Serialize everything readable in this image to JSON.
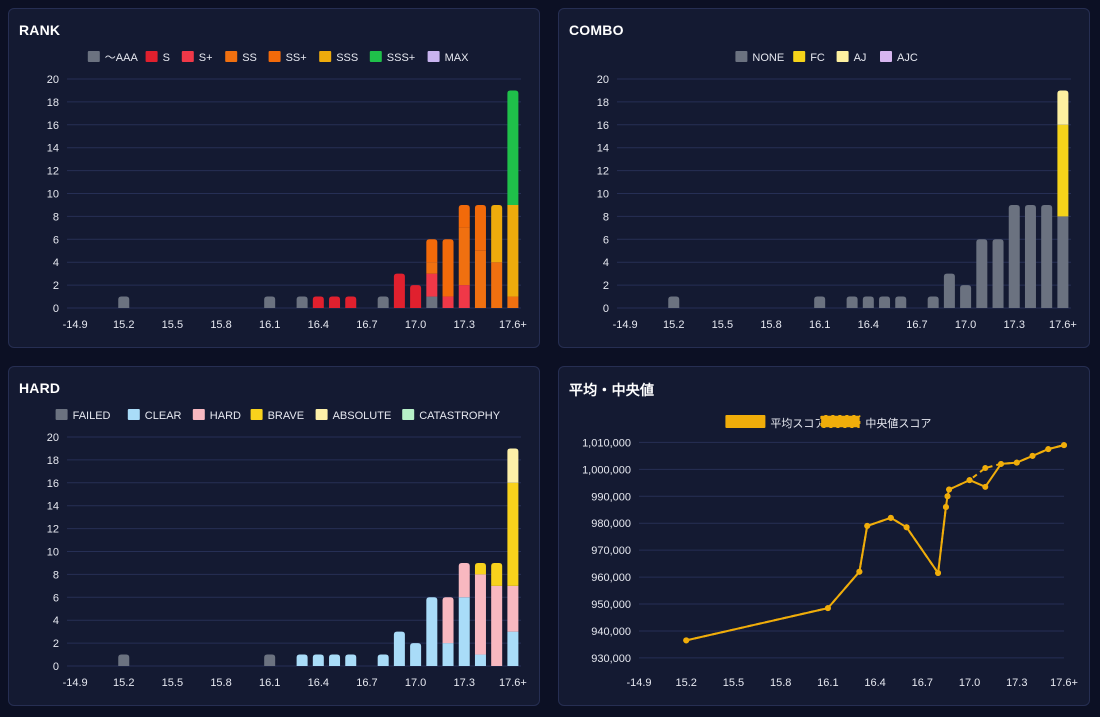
{
  "palette": {
    "grid": "#262f55",
    "tick": "#e6e8f0",
    "panel_bg": "#141a32"
  },
  "panels": {
    "rank": {
      "title": "RANK"
    },
    "combo": {
      "title": "COMBO"
    },
    "hard": {
      "title": "HARD"
    },
    "avg": {
      "title": "平均・中央値"
    }
  },
  "chart_data": [
    {
      "id": "rank",
      "type": "bar",
      "stacked": true,
      "title": "RANK",
      "legend_position": "top-center",
      "categories": [
        "-14.9",
        "15.0",
        "15.1",
        "15.2",
        "15.3",
        "15.4",
        "15.5",
        "15.6",
        "15.7",
        "15.8",
        "15.9",
        "16.0",
        "16.1",
        "16.2",
        "16.3",
        "16.4",
        "16.5",
        "16.6",
        "16.7",
        "16.8",
        "16.9",
        "17.0",
        "17.1",
        "17.2",
        "17.3",
        "17.4",
        "17.5",
        "17.6+"
      ],
      "x_tick_labels": [
        "-14.9",
        "15.2",
        "15.5",
        "15.8",
        "16.1",
        "16.4",
        "16.7",
        "17.0",
        "17.3",
        "17.6+"
      ],
      "ylim": [
        0,
        20
      ],
      "y_ticks": [
        0,
        2,
        4,
        6,
        8,
        10,
        12,
        14,
        16,
        18,
        20
      ],
      "series": [
        {
          "name": "〜AAA",
          "color": "#6b7280",
          "values": [
            0,
            0,
            0,
            1,
            0,
            0,
            0,
            0,
            0,
            0,
            0,
            0,
            1,
            0,
            1,
            0,
            0,
            0,
            0,
            1,
            0,
            0,
            1,
            0,
            0,
            0,
            0,
            0
          ]
        },
        {
          "name": "S",
          "color": "#e0202e",
          "values": [
            0,
            0,
            0,
            0,
            0,
            0,
            0,
            0,
            0,
            0,
            0,
            0,
            0,
            0,
            0,
            1,
            1,
            1,
            0,
            0,
            3,
            2,
            0,
            0,
            0,
            0,
            0,
            0
          ]
        },
        {
          "name": "S+",
          "color": "#f03848",
          "values": [
            0,
            0,
            0,
            0,
            0,
            0,
            0,
            0,
            0,
            0,
            0,
            0,
            0,
            0,
            0,
            0,
            0,
            0,
            0,
            0,
            0,
            0,
            2,
            1,
            2,
            0,
            0,
            0
          ]
        },
        {
          "name": "SS",
          "color": "#f07010",
          "values": [
            0,
            0,
            0,
            0,
            0,
            0,
            0,
            0,
            0,
            0,
            0,
            0,
            0,
            0,
            0,
            0,
            0,
            0,
            0,
            0,
            0,
            0,
            1,
            0,
            5,
            5,
            4,
            1
          ]
        },
        {
          "name": "SS+",
          "color": "#f26a0a",
          "values": [
            0,
            0,
            0,
            0,
            0,
            0,
            0,
            0,
            0,
            0,
            0,
            0,
            0,
            0,
            0,
            0,
            0,
            0,
            0,
            0,
            0,
            0,
            2,
            5,
            2,
            4,
            0,
            0
          ]
        },
        {
          "name": "SSS",
          "color": "#eeab0c",
          "values": [
            0,
            0,
            0,
            0,
            0,
            0,
            0,
            0,
            0,
            0,
            0,
            0,
            0,
            0,
            0,
            0,
            0,
            0,
            0,
            0,
            0,
            0,
            0,
            0,
            0,
            0,
            5,
            8
          ]
        },
        {
          "name": "SSS+",
          "color": "#1fc04a",
          "values": [
            0,
            0,
            0,
            0,
            0,
            0,
            0,
            0,
            0,
            0,
            0,
            0,
            0,
            0,
            0,
            0,
            0,
            0,
            0,
            0,
            0,
            0,
            0,
            0,
            0,
            0,
            0,
            10
          ]
        },
        {
          "name": "MAX",
          "color": "#c9b4f0",
          "values": [
            0,
            0,
            0,
            0,
            0,
            0,
            0,
            0,
            0,
            0,
            0,
            0,
            0,
            0,
            0,
            0,
            0,
            0,
            0,
            0,
            0,
            0,
            0,
            0,
            0,
            0,
            0,
            0
          ]
        }
      ]
    },
    {
      "id": "combo",
      "type": "bar",
      "stacked": true,
      "title": "COMBO",
      "legend_position": "top-center",
      "categories": [
        "-14.9",
        "15.0",
        "15.1",
        "15.2",
        "15.3",
        "15.4",
        "15.5",
        "15.6",
        "15.7",
        "15.8",
        "15.9",
        "16.0",
        "16.1",
        "16.2",
        "16.3",
        "16.4",
        "16.5",
        "16.6",
        "16.7",
        "16.8",
        "16.9",
        "17.0",
        "17.1",
        "17.2",
        "17.3",
        "17.4",
        "17.5",
        "17.6+"
      ],
      "x_tick_labels": [
        "-14.9",
        "15.2",
        "15.5",
        "15.8",
        "16.1",
        "16.4",
        "16.7",
        "17.0",
        "17.3",
        "17.6+"
      ],
      "ylim": [
        0,
        20
      ],
      "y_ticks": [
        0,
        2,
        4,
        6,
        8,
        10,
        12,
        14,
        16,
        18,
        20
      ],
      "series": [
        {
          "name": "NONE",
          "color": "#6b7280",
          "values": [
            0,
            0,
            0,
            1,
            0,
            0,
            0,
            0,
            0,
            0,
            0,
            0,
            1,
            0,
            1,
            1,
            1,
            1,
            0,
            1,
            3,
            2,
            6,
            6,
            9,
            9,
            9,
            8
          ]
        },
        {
          "name": "FC",
          "color": "#f5d31a",
          "values": [
            0,
            0,
            0,
            0,
            0,
            0,
            0,
            0,
            0,
            0,
            0,
            0,
            0,
            0,
            0,
            0,
            0,
            0,
            0,
            0,
            0,
            0,
            0,
            0,
            0,
            0,
            0,
            8
          ]
        },
        {
          "name": "AJ",
          "color": "#fdf0a0",
          "values": [
            0,
            0,
            0,
            0,
            0,
            0,
            0,
            0,
            0,
            0,
            0,
            0,
            0,
            0,
            0,
            0,
            0,
            0,
            0,
            0,
            0,
            0,
            0,
            0,
            0,
            0,
            0,
            3
          ]
        },
        {
          "name": "AJC",
          "color": "#d7b6f0",
          "values": [
            0,
            0,
            0,
            0,
            0,
            0,
            0,
            0,
            0,
            0,
            0,
            0,
            0,
            0,
            0,
            0,
            0,
            0,
            0,
            0,
            0,
            0,
            0,
            0,
            0,
            0,
            0,
            0
          ]
        }
      ]
    },
    {
      "id": "hard",
      "type": "bar",
      "stacked": true,
      "title": "HARD",
      "legend_position": "top-center",
      "categories": [
        "-14.9",
        "15.0",
        "15.1",
        "15.2",
        "15.3",
        "15.4",
        "15.5",
        "15.6",
        "15.7",
        "15.8",
        "15.9",
        "16.0",
        "16.1",
        "16.2",
        "16.3",
        "16.4",
        "16.5",
        "16.6",
        "16.7",
        "16.8",
        "16.9",
        "17.0",
        "17.1",
        "17.2",
        "17.3",
        "17.4",
        "17.5",
        "17.6+"
      ],
      "x_tick_labels": [
        "-14.9",
        "15.2",
        "15.5",
        "15.8",
        "16.1",
        "16.4",
        "16.7",
        "17.0",
        "17.3",
        "17.6+"
      ],
      "ylim": [
        0,
        20
      ],
      "y_ticks": [
        0,
        2,
        4,
        6,
        8,
        10,
        12,
        14,
        16,
        18,
        20
      ],
      "series": [
        {
          "name": "FAILED",
          "color": "#6b7280",
          "values": [
            0,
            0,
            0,
            1,
            0,
            0,
            0,
            0,
            0,
            0,
            0,
            0,
            1,
            0,
            0,
            0,
            0,
            0,
            0,
            0,
            0,
            0,
            0,
            0,
            0,
            0,
            0,
            0
          ]
        },
        {
          "name": "CLEAR",
          "color": "#a9dcf8",
          "values": [
            0,
            0,
            0,
            0,
            0,
            0,
            0,
            0,
            0,
            0,
            0,
            0,
            0,
            0,
            1,
            1,
            1,
            1,
            0,
            1,
            3,
            2,
            6,
            2,
            6,
            1,
            0,
            3
          ]
        },
        {
          "name": "HARD",
          "color": "#f8b8c0",
          "values": [
            0,
            0,
            0,
            0,
            0,
            0,
            0,
            0,
            0,
            0,
            0,
            0,
            0,
            0,
            0,
            0,
            0,
            0,
            0,
            0,
            0,
            0,
            0,
            4,
            3,
            7,
            7,
            4
          ]
        },
        {
          "name": "BRAVE",
          "color": "#f8d21c",
          "values": [
            0,
            0,
            0,
            0,
            0,
            0,
            0,
            0,
            0,
            0,
            0,
            0,
            0,
            0,
            0,
            0,
            0,
            0,
            0,
            0,
            0,
            0,
            0,
            0,
            0,
            1,
            2,
            9
          ]
        },
        {
          "name": "ABSOLUTE",
          "color": "#fdf0a8",
          "values": [
            0,
            0,
            0,
            0,
            0,
            0,
            0,
            0,
            0,
            0,
            0,
            0,
            0,
            0,
            0,
            0,
            0,
            0,
            0,
            0,
            0,
            0,
            0,
            0,
            0,
            0,
            0,
            3
          ]
        },
        {
          "name": "CATASTROPHY",
          "color": "#b6f0c8",
          "values": [
            0,
            0,
            0,
            0,
            0,
            0,
            0,
            0,
            0,
            0,
            0,
            0,
            0,
            0,
            0,
            0,
            0,
            0,
            0,
            0,
            0,
            0,
            0,
            0,
            0,
            0,
            0,
            0
          ]
        }
      ]
    },
    {
      "id": "avg",
      "type": "line",
      "title": "平均・中央値",
      "legend_position": "top-center",
      "x_tick_labels": [
        "-14.9",
        "15.2",
        "15.5",
        "15.8",
        "16.1",
        "16.4",
        "16.7",
        "17.0",
        "17.3",
        "17.6+"
      ],
      "x_range": [
        14.9,
        17.6
      ],
      "ylim": [
        927000,
        1012000
      ],
      "y_ticks": [
        930000,
        940000,
        950000,
        960000,
        970000,
        980000,
        990000,
        1000000,
        1010000
      ],
      "y_tick_labels": [
        "930,000",
        "940,000",
        "950,000",
        "960,000",
        "970,000",
        "980,000",
        "990,000",
        "1,000,000",
        "1,010,000"
      ],
      "series": [
        {
          "name": "平均スコア",
          "color": "#f0ad0a",
          "dashed": false,
          "x": [
            15.2,
            16.1,
            16.3,
            16.35,
            16.5,
            16.6,
            16.8,
            16.85,
            16.86,
            16.87,
            17.0,
            17.1,
            17.2,
            17.3,
            17.4,
            17.5,
            17.6
          ],
          "y": [
            936500,
            948500,
            962000,
            979000,
            982000,
            978500,
            961500,
            986000,
            990000,
            992500,
            996000,
            993500,
            1002000,
            1002500,
            1005000,
            1007500,
            1009000
          ]
        },
        {
          "name": "中央値スコア",
          "color": "#f0ad0a",
          "dashed": true,
          "x": [
            15.2,
            16.1,
            16.3,
            16.35,
            16.5,
            16.6,
            16.8,
            16.85,
            16.86,
            16.87,
            17.0,
            17.1,
            17.2,
            17.3,
            17.4,
            17.5,
            17.6
          ],
          "y": [
            936500,
            948500,
            962000,
            979000,
            982000,
            978500,
            961500,
            986000,
            990000,
            992500,
            996000,
            1000500,
            1002000,
            1002500,
            1005000,
            1007500,
            1009000
          ]
        }
      ]
    }
  ]
}
